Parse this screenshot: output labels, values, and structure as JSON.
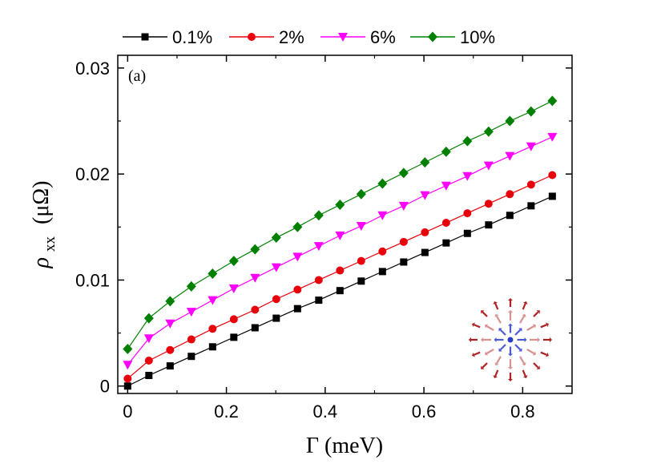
{
  "chart_data": {
    "type": "line",
    "panel_label": "(a)",
    "xlabel": "Γ (meV)",
    "ylabel": {
      "symbol": "ρ",
      "subscript": "xx",
      "unit": "(μΩ)"
    },
    "xlim": [
      -0.02,
      0.9
    ],
    "ylim": [
      -0.0007,
      0.0312
    ],
    "xticks": [
      0,
      0.2,
      0.4,
      0.6,
      0.8
    ],
    "xtick_labels": [
      "0",
      "0.2",
      "0.4",
      "0.6",
      "0.8"
    ],
    "yticks": [
      0,
      0.01,
      0.02,
      0.03
    ],
    "ytick_labels": [
      "0",
      "0.01",
      "0.02",
      "0.03"
    ],
    "x": [
      0,
      0.043,
      0.086,
      0.129,
      0.172,
      0.215,
      0.258,
      0.301,
      0.344,
      0.387,
      0.43,
      0.473,
      0.516,
      0.559,
      0.602,
      0.645,
      0.688,
      0.731,
      0.774,
      0.817,
      0.86
    ],
    "legend_position": "top",
    "series": [
      {
        "name": "0.1%",
        "color": "#000000",
        "marker": "square",
        "values": [
          0.0,
          0.001,
          0.0019,
          0.0028,
          0.0037,
          0.0046,
          0.0055,
          0.0064,
          0.0073,
          0.0081,
          0.009,
          0.0099,
          0.0108,
          0.0117,
          0.0126,
          0.0135,
          0.0144,
          0.0152,
          0.0161,
          0.017,
          0.0179
        ]
      },
      {
        "name": "2%",
        "color": "#e8000b",
        "marker": "circle",
        "values": [
          0.0007,
          0.0024,
          0.0034,
          0.0044,
          0.0054,
          0.0063,
          0.0072,
          0.0082,
          0.0091,
          0.01,
          0.0109,
          0.0118,
          0.0127,
          0.0136,
          0.0145,
          0.0154,
          0.0163,
          0.0172,
          0.0181,
          0.019,
          0.0199
        ]
      },
      {
        "name": "6%",
        "color": "#ff00ff",
        "marker": "triangle-down",
        "values": [
          0.002,
          0.0045,
          0.0059,
          0.007,
          0.0081,
          0.0092,
          0.0102,
          0.0112,
          0.0122,
          0.0132,
          0.0142,
          0.0151,
          0.0161,
          0.017,
          0.018,
          0.0189,
          0.0198,
          0.0208,
          0.0217,
          0.0226,
          0.0235
        ]
      },
      {
        "name": "10%",
        "color": "#008000",
        "marker": "diamond",
        "values": [
          0.0035,
          0.0064,
          0.008,
          0.0094,
          0.0106,
          0.0118,
          0.0129,
          0.014,
          0.015,
          0.0161,
          0.0171,
          0.0181,
          0.0191,
          0.0201,
          0.0211,
          0.0221,
          0.0231,
          0.024,
          0.025,
          0.0259,
          0.0269
        ]
      }
    ]
  }
}
